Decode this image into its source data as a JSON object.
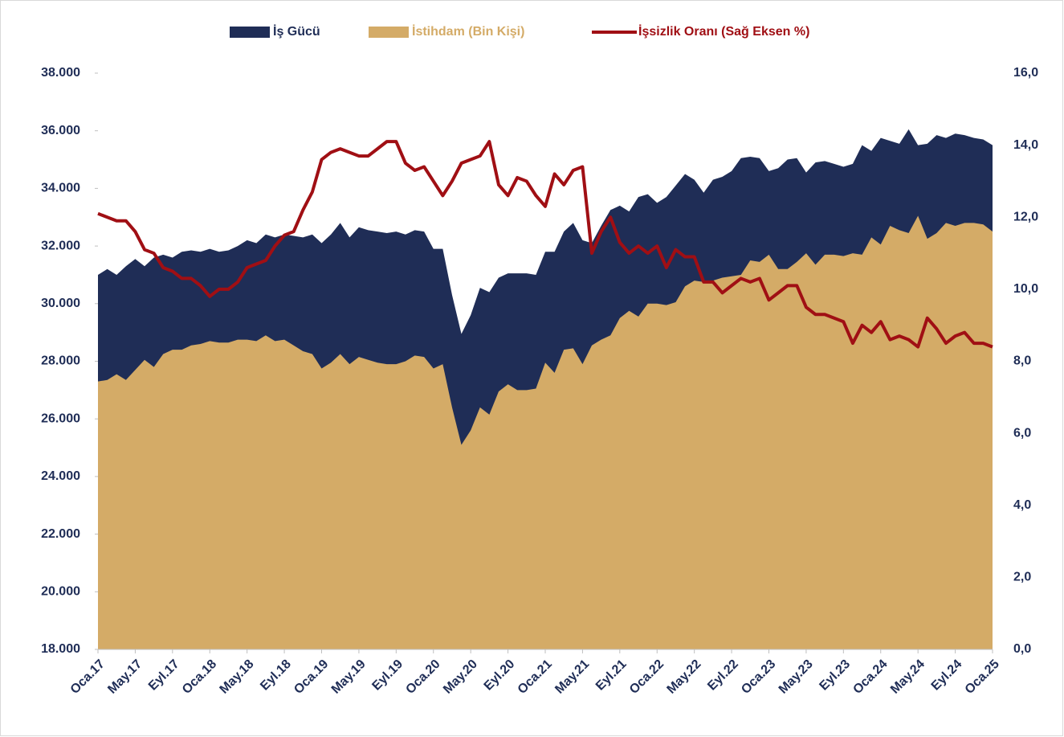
{
  "chart_data": {
    "type": "area",
    "legend": "top",
    "categories": [
      "Oca.17",
      null,
      null,
      null,
      "May.17",
      null,
      null,
      null,
      "Eyl.17",
      null,
      null,
      null,
      "Oca.18",
      null,
      null,
      null,
      "May.18",
      null,
      null,
      null,
      "Eyl.18",
      null,
      null,
      null,
      "Oca.19",
      null,
      null,
      null,
      "May.19",
      null,
      null,
      null,
      "Eyl.19",
      null,
      null,
      null,
      "Oca.20",
      null,
      null,
      null,
      "May.20",
      null,
      null,
      null,
      "Eyl.20",
      null,
      null,
      null,
      "Oca.21",
      null,
      null,
      null,
      "May.21",
      null,
      null,
      null,
      "Eyl.21",
      null,
      null,
      null,
      "Oca.22",
      null,
      null,
      null,
      "May.22",
      null,
      null,
      null,
      "Eyl.22",
      null,
      null,
      null,
      "Oca.23",
      null,
      null,
      null,
      "May.23",
      null,
      null,
      null,
      "Eyl.23",
      null,
      null,
      null,
      "Oca.24",
      null,
      null,
      null,
      "May.24",
      null,
      null,
      null,
      "Eyl.24",
      null,
      null,
      null,
      "Oca.25"
    ],
    "series": [
      {
        "name": "İş Gücü",
        "type": "area",
        "color": "#1f2d56",
        "values": [
          31000,
          31200,
          31000,
          31300,
          31550,
          31300,
          31600,
          31700,
          31600,
          31800,
          31850,
          31800,
          31900,
          31800,
          31850,
          32000,
          32200,
          32100,
          32400,
          32300,
          32400,
          32350,
          32300,
          32400,
          32100,
          32400,
          32800,
          32300,
          32650,
          32550,
          32500,
          32450,
          32500,
          32400,
          32550,
          32500,
          31900,
          31900,
          30300,
          28950,
          29600,
          30550,
          30400,
          30900,
          31050,
          31050,
          31050,
          31000,
          31800,
          31800,
          32500,
          32800,
          32200,
          32100,
          32700,
          33250,
          33400,
          33200,
          33700,
          33800,
          33500,
          33700,
          34100,
          34500,
          34300,
          33850,
          34300,
          34400,
          34600,
          35050,
          35100,
          35050,
          34600,
          34700,
          35000,
          35050,
          34550,
          34900,
          34950,
          34850,
          34750,
          34850,
          35500,
          35300,
          35750,
          35650,
          35550,
          36050,
          35500,
          35550,
          35850,
          35750,
          35900,
          35850,
          35750,
          35700,
          35500
        ]
      },
      {
        "name": "İstihdam (Bin Kişi)",
        "type": "area",
        "color": "#d4ab67",
        "values": [
          27300,
          27350,
          27550,
          27350,
          27700,
          28050,
          27800,
          28250,
          28400,
          28400,
          28550,
          28600,
          28700,
          28650,
          28650,
          28750,
          28750,
          28700,
          28900,
          28700,
          28750,
          28550,
          28350,
          28250,
          27750,
          27950,
          28250,
          27900,
          28150,
          28050,
          27950,
          27900,
          27900,
          28000,
          28200,
          28150,
          27750,
          27900,
          26400,
          25100,
          25600,
          26400,
          26150,
          26950,
          27200,
          27000,
          27000,
          27050,
          27950,
          27600,
          28400,
          28450,
          27900,
          28550,
          28750,
          28900,
          29500,
          29750,
          29550,
          30000,
          30000,
          29950,
          30050,
          30600,
          30800,
          30750,
          30800,
          30900,
          30950,
          31000,
          31500,
          31450,
          31700,
          31200,
          31200,
          31450,
          31750,
          31350,
          31700,
          31700,
          31650,
          31750,
          31700,
          32300,
          32050,
          32700,
          32550,
          32450,
          33050,
          32250,
          32450,
          32800,
          32700,
          32800,
          32800,
          32750,
          32500
        ]
      },
      {
        "name": "İşsizlik Oranı (Sağ Eksen %)",
        "type": "line",
        "axis": "y2",
        "color": "#a00f14",
        "values": [
          12.1,
          12.0,
          11.9,
          11.9,
          11.6,
          11.1,
          11.0,
          10.6,
          10.5,
          10.3,
          10.3,
          10.1,
          9.8,
          10.0,
          10.0,
          10.2,
          10.6,
          10.7,
          10.8,
          11.2,
          11.5,
          11.6,
          12.2,
          12.7,
          13.6,
          13.8,
          13.9,
          13.8,
          13.7,
          13.7,
          13.9,
          14.1,
          14.1,
          13.5,
          13.3,
          13.4,
          13.0,
          12.6,
          13.0,
          13.5,
          13.6,
          13.7,
          14.1,
          12.9,
          12.6,
          13.1,
          13.0,
          12.6,
          12.3,
          13.2,
          12.9,
          13.3,
          13.4,
          11.0,
          11.6,
          12.0,
          11.3,
          11.0,
          11.2,
          11.0,
          11.2,
          10.6,
          11.1,
          10.9,
          10.9,
          10.2,
          10.2,
          9.9,
          10.1,
          10.3,
          10.2,
          10.3,
          9.7,
          9.9,
          10.1,
          10.1,
          9.5,
          9.3,
          9.3,
          9.2,
          9.1,
          8.5,
          9.0,
          8.8,
          9.1,
          8.6,
          8.7,
          8.6,
          8.4,
          9.2,
          8.9,
          8.5,
          8.7,
          8.8,
          8.5,
          8.5,
          8.4
        ]
      }
    ],
    "ylim": [
      18000,
      38000
    ],
    "yticks": [
      {
        "value": 18000,
        "label": "18.000"
      },
      {
        "value": 20000,
        "label": "20.000"
      },
      {
        "value": 22000,
        "label": "22.000"
      },
      {
        "value": 24000,
        "label": "24.000"
      },
      {
        "value": 26000,
        "label": "26.000"
      },
      {
        "value": 28000,
        "label": "28.000"
      },
      {
        "value": 30000,
        "label": "30.000"
      },
      {
        "value": 32000,
        "label": "32.000"
      },
      {
        "value": 34000,
        "label": "34.000"
      },
      {
        "value": 36000,
        "label": "36.000"
      },
      {
        "value": 38000,
        "label": "38.000"
      }
    ],
    "y2lim": [
      0,
      16
    ],
    "y2ticks": [
      {
        "value": 0,
        "label": "0,0"
      },
      {
        "value": 2,
        "label": "2,0"
      },
      {
        "value": 4,
        "label": "4,0"
      },
      {
        "value": 6,
        "label": "6,0"
      },
      {
        "value": 8,
        "label": "8,0"
      },
      {
        "value": 10,
        "label": "10,0"
      },
      {
        "value": 12,
        "label": "12,0"
      },
      {
        "value": 14,
        "label": "14,0"
      },
      {
        "value": 16,
        "label": "16,0"
      }
    ]
  }
}
